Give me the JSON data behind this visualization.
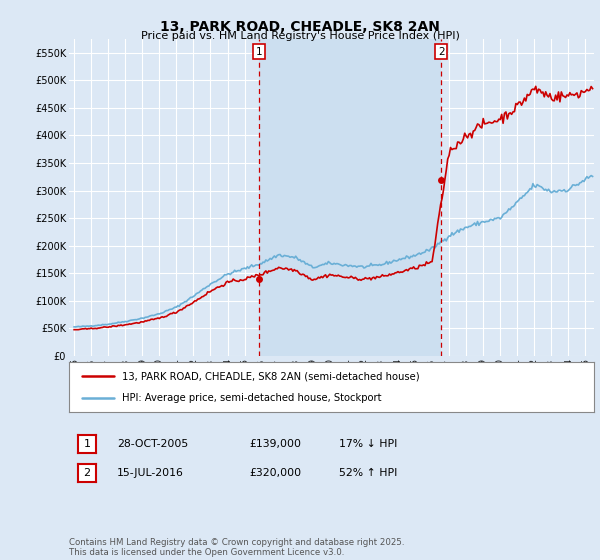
{
  "title": "13, PARK ROAD, CHEADLE, SK8 2AN",
  "subtitle": "Price paid vs. HM Land Registry's House Price Index (HPI)",
  "ylim": [
    0,
    575000
  ],
  "yticks": [
    0,
    50000,
    100000,
    150000,
    200000,
    250000,
    300000,
    350000,
    400000,
    450000,
    500000,
    550000
  ],
  "ytick_labels": [
    "£0",
    "£50K",
    "£100K",
    "£150K",
    "£200K",
    "£250K",
    "£300K",
    "£350K",
    "£400K",
    "£450K",
    "£500K",
    "£550K"
  ],
  "background_color": "#dce8f5",
  "plot_bg_color": "#dce8f5",
  "shaded_bg_color": "#ccdff0",
  "grid_color": "#ffffff",
  "red_color": "#cc0000",
  "blue_color": "#6aafd6",
  "transaction1_price": 139000,
  "transaction1_label": "28-OCT-2005",
  "transaction1_pct": "17% ↓ HPI",
  "transaction1_x": 2005.833,
  "transaction2_price": 320000,
  "transaction2_label": "15-JUL-2016",
  "transaction2_pct": "52% ↑ HPI",
  "transaction2_x": 2016.542,
  "legend_entry1": "13, PARK ROAD, CHEADLE, SK8 2AN (semi-detached house)",
  "legend_entry2": "HPI: Average price, semi-detached house, Stockport",
  "footer": "Contains HM Land Registry data © Crown copyright and database right 2025.\nThis data is licensed under the Open Government Licence v3.0.",
  "xlim_left": 1994.7,
  "xlim_right": 2025.5
}
